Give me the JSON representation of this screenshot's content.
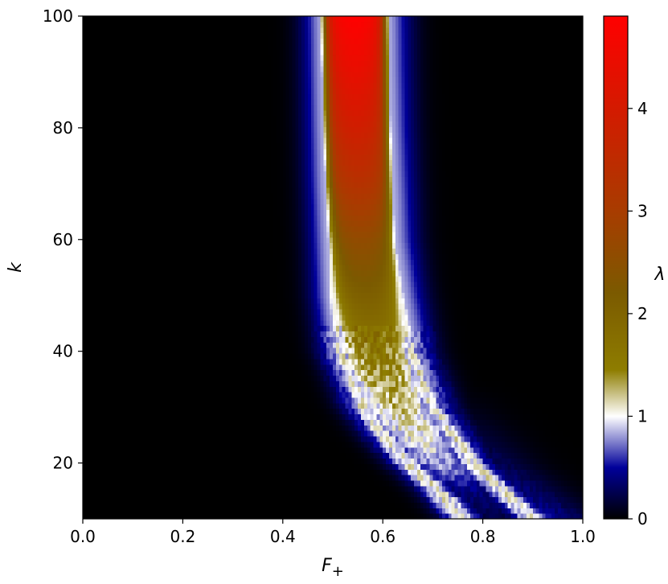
{
  "chart_data": {
    "type": "heatmap",
    "title": "",
    "xlabel": "F",
    "xlabel_subscript": "+",
    "ylabel": "k",
    "xlim": [
      0.0,
      1.0
    ],
    "ylim": [
      10,
      100
    ],
    "x_ticks": [
      0.0,
      0.2,
      0.4,
      0.6,
      0.8,
      1.0
    ],
    "x_tick_labels": [
      "0.0",
      "0.2",
      "0.4",
      "0.6",
      "0.8",
      "1.0"
    ],
    "y_ticks": [
      20,
      40,
      60,
      80,
      100
    ],
    "y_tick_labels": [
      "20",
      "40",
      "60",
      "80",
      "100"
    ],
    "grid": false,
    "colorbar": {
      "label": "λ",
      "min": 0,
      "max": 4.9,
      "ticks": [
        0,
        1,
        2,
        3,
        4
      ],
      "tick_labels": [
        "0",
        "1",
        "2",
        "3",
        "4"
      ],
      "colormap_stops": [
        {
          "value": 0.0,
          "color": "#000000"
        },
        {
          "value": 0.5,
          "color": "#00009a"
        },
        {
          "value": 1.0,
          "color": "#ffffff"
        },
        {
          "value": 1.45,
          "color": "#8e7d00"
        },
        {
          "value": 2.2,
          "color": "#7b5a00"
        },
        {
          "value": 3.0,
          "color": "#a83c00"
        },
        {
          "value": 4.0,
          "color": "#d41a00"
        },
        {
          "value": 4.9,
          "color": "#ff0000"
        }
      ]
    },
    "structure": {
      "description_points_k": [
        10,
        15,
        20,
        25,
        30,
        40,
        50,
        60,
        70,
        80,
        90,
        100
      ],
      "ridge_left_F": [
        0.76,
        0.71,
        0.65,
        0.6,
        0.56,
        0.515,
        0.5,
        0.495,
        0.49,
        0.487,
        0.485,
        0.483
      ],
      "ridge_right_F": [
        0.9,
        0.84,
        0.78,
        0.74,
        0.7,
        0.655,
        0.635,
        0.62,
        0.615,
        0.61,
        0.607,
        0.605
      ],
      "peak_lambda": [
        0.25,
        0.45,
        0.9,
        1.1,
        1.25,
        1.6,
        2.1,
        2.6,
        3.3,
        3.9,
        4.4,
        4.9
      ]
    }
  }
}
